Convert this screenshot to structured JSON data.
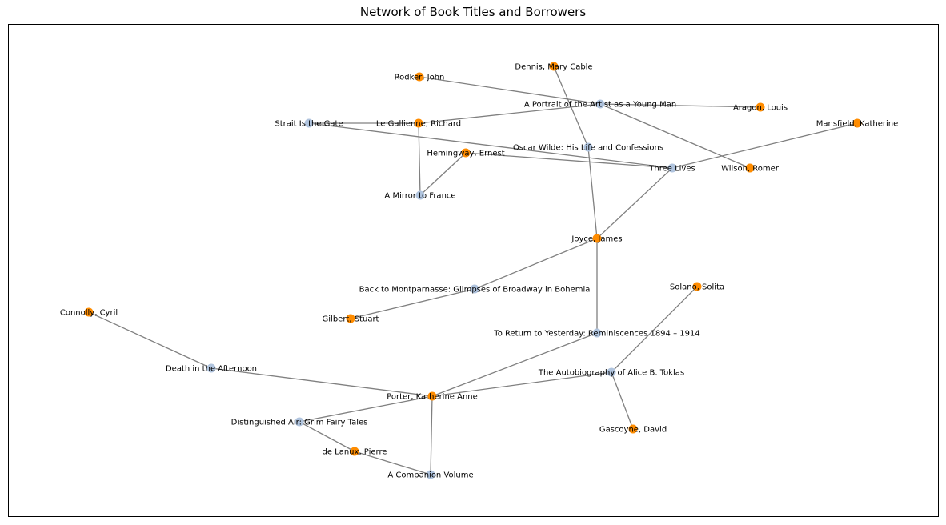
{
  "title": "Network of Book Titles and Borrowers",
  "colors": {
    "book": "#b0c4de",
    "borrower": "#ff8c00",
    "edge": "#808080"
  },
  "nodes": [
    {
      "id": "portrait",
      "label": "A Portrait of the Artist as a Young Man",
      "type": "book"
    },
    {
      "id": "three_lives",
      "label": "Three Lives",
      "type": "book"
    },
    {
      "id": "oscar",
      "label": "Oscar Wilde: His Life and Confessions",
      "type": "book"
    },
    {
      "id": "strait",
      "label": "Strait Is the Gate",
      "type": "book"
    },
    {
      "id": "mirror",
      "label": "A Mirror to France",
      "type": "book"
    },
    {
      "id": "montparnasse",
      "label": "Back to Montparnasse: Glimpses of Broadway in Bohemia",
      "type": "book"
    },
    {
      "id": "yesterday",
      "label": "To Return to Yesterday: Reminiscences 1894 – 1914",
      "type": "book"
    },
    {
      "id": "toklas",
      "label": "The Autobiography of Alice B. Toklas",
      "type": "book"
    },
    {
      "id": "afternoon",
      "label": "Death in the Afternoon",
      "type": "book"
    },
    {
      "id": "grim",
      "label": "Distinguished Air: Grim Fairy Tales",
      "type": "book"
    },
    {
      "id": "companion",
      "label": "A Companion Volume",
      "type": "book"
    },
    {
      "id": "dennis",
      "label": "Dennis, Mary Cable",
      "type": "borrower"
    },
    {
      "id": "rodker",
      "label": "Rodker, John",
      "type": "borrower"
    },
    {
      "id": "aragon",
      "label": "Aragon, Louis",
      "type": "borrower"
    },
    {
      "id": "mansfield",
      "label": "Mansfield, Katherine",
      "type": "borrower"
    },
    {
      "id": "legallienne",
      "label": "Le Gallienne, Richard",
      "type": "borrower"
    },
    {
      "id": "hemingway",
      "label": "Hemingway, Ernest",
      "type": "borrower"
    },
    {
      "id": "wilson",
      "label": "Wilson, Romer",
      "type": "borrower"
    },
    {
      "id": "joyce",
      "label": "Joyce, James",
      "type": "borrower"
    },
    {
      "id": "solano",
      "label": "Solano, Solita",
      "type": "borrower"
    },
    {
      "id": "connolly",
      "label": "Connolly, Cyril",
      "type": "borrower"
    },
    {
      "id": "gilbert",
      "label": "Gilbert, Stuart",
      "type": "borrower"
    },
    {
      "id": "porter",
      "label": "Porter, Katherine Anne",
      "type": "borrower"
    },
    {
      "id": "gascoyne",
      "label": "Gascoyne, David",
      "type": "borrower"
    },
    {
      "id": "delanux",
      "label": "de Lanux, Pierre",
      "type": "borrower"
    }
  ],
  "edges": [
    [
      "rodker",
      "portrait"
    ],
    [
      "legallienne",
      "portrait"
    ],
    [
      "aragon",
      "portrait"
    ],
    [
      "wilson",
      "portrait"
    ],
    [
      "dennis",
      "oscar"
    ],
    [
      "oscar",
      "joyce"
    ],
    [
      "strait",
      "legallienne"
    ],
    [
      "strait",
      "three_lives"
    ],
    [
      "hemingway",
      "three_lives"
    ],
    [
      "mansfield",
      "three_lives"
    ],
    [
      "joyce",
      "three_lives"
    ],
    [
      "legallienne",
      "mirror"
    ],
    [
      "hemingway",
      "mirror"
    ],
    [
      "joyce",
      "montparnasse"
    ],
    [
      "montparnasse",
      "gilbert"
    ],
    [
      "joyce",
      "yesterday"
    ],
    [
      "yesterday",
      "porter"
    ],
    [
      "solano",
      "toklas"
    ],
    [
      "toklas",
      "porter"
    ],
    [
      "toklas",
      "gascoyne"
    ],
    [
      "connolly",
      "afternoon"
    ],
    [
      "afternoon",
      "porter"
    ],
    [
      "grim",
      "porter"
    ],
    [
      "grim",
      "delanux"
    ],
    [
      "delanux",
      "companion"
    ],
    [
      "porter",
      "companion"
    ]
  ]
}
